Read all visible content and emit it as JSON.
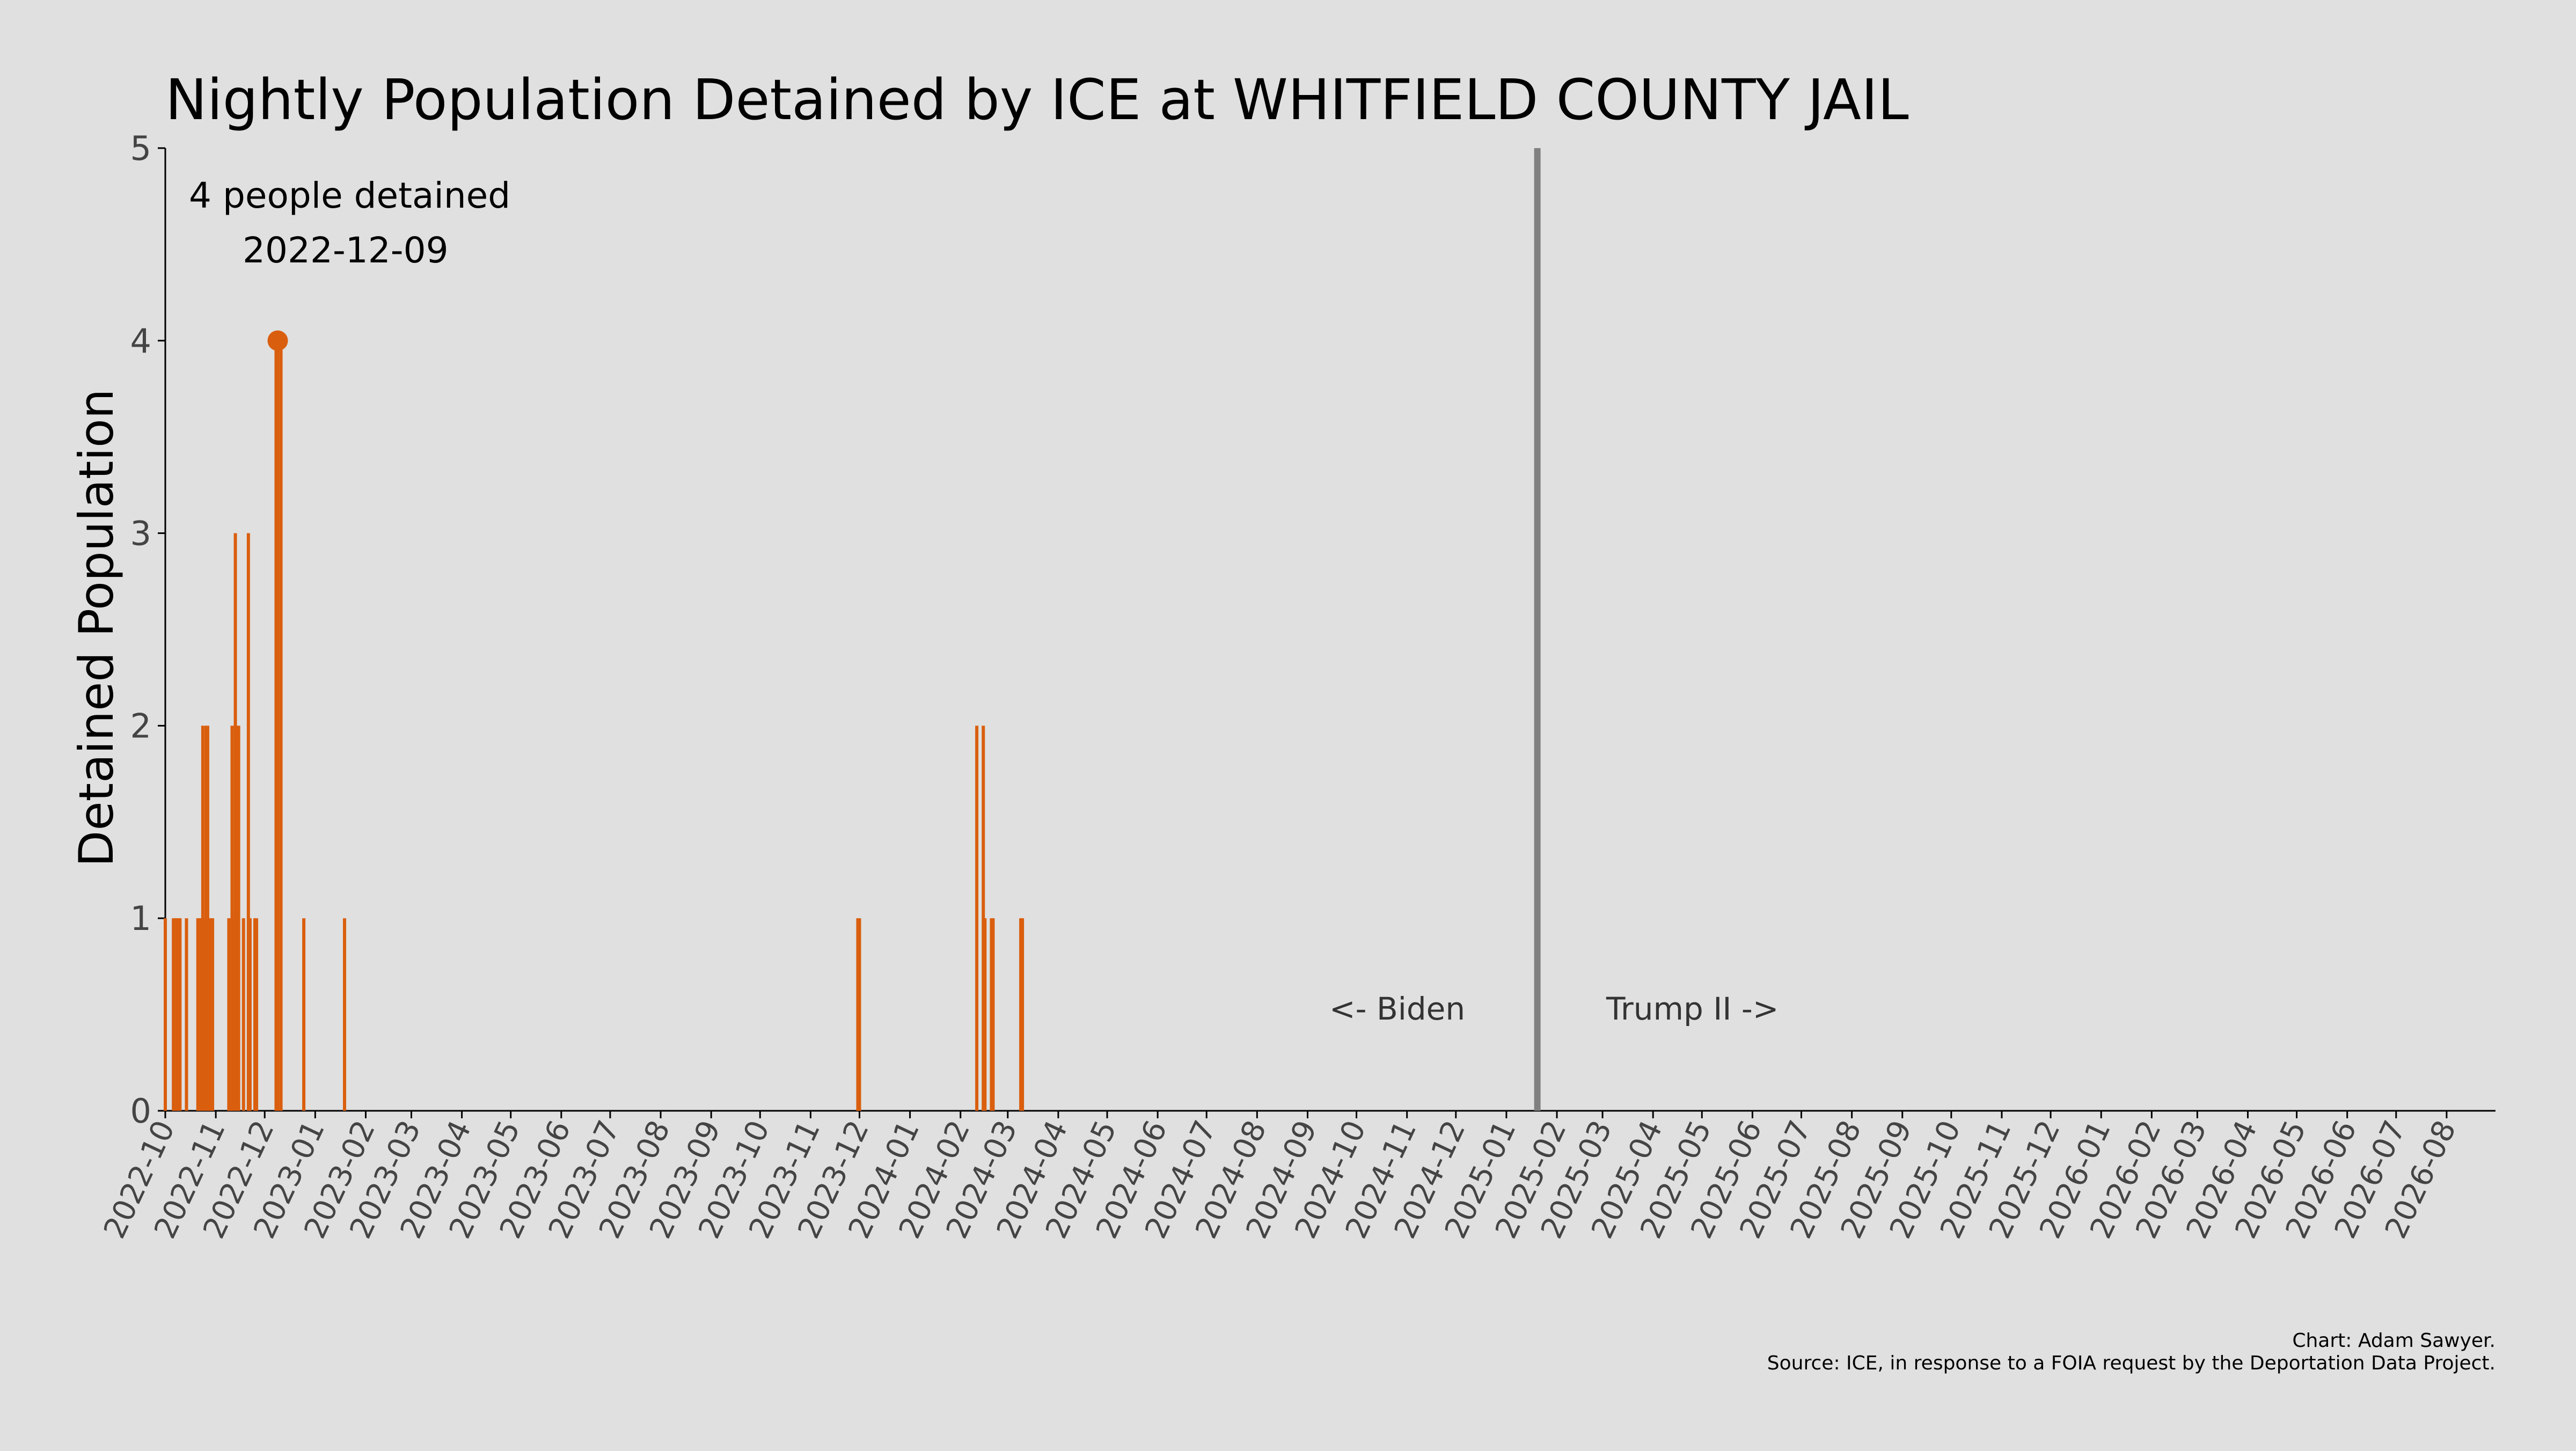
{
  "chart_data": {
    "type": "bar",
    "title": "Nightly Population Detained by ICE at WHITFIELD COUNTY JAIL",
    "ylabel": "Detained Population",
    "xlabel": "",
    "ylim": [
      0,
      5
    ],
    "yticks": [
      0,
      1,
      2,
      3,
      4,
      5
    ],
    "xlim": [
      "2022-10-01",
      "2026-08-31"
    ],
    "xtick_labels": [
      "2022-10",
      "2022-11",
      "2022-12",
      "2023-01",
      "2023-02",
      "2023-03",
      "2023-04",
      "2023-05",
      "2023-06",
      "2023-07",
      "2023-08",
      "2023-09",
      "2023-10",
      "2023-11",
      "2023-12",
      "2024-01",
      "2024-02",
      "2024-03",
      "2024-04",
      "2024-05",
      "2024-06",
      "2024-07",
      "2024-08",
      "2024-09",
      "2024-10",
      "2024-11",
      "2024-12",
      "2025-01",
      "2025-02",
      "2025-03",
      "2025-04",
      "2025-05",
      "2025-06",
      "2025-07",
      "2025-08",
      "2025-09",
      "2025-10",
      "2025-11",
      "2025-12",
      "2026-01",
      "2026-02",
      "2026-03",
      "2026-04",
      "2026-05",
      "2026-06",
      "2026-07",
      "2026-08"
    ],
    "grid": false,
    "bar_color": "#d95f0e",
    "divider_color": "#808080",
    "data": [
      {
        "date": "2022-10-01",
        "value": 1
      },
      {
        "date": "2022-10-06",
        "value": 1
      },
      {
        "date": "2022-10-07",
        "value": 1
      },
      {
        "date": "2022-10-08",
        "value": 1
      },
      {
        "date": "2022-10-09",
        "value": 1
      },
      {
        "date": "2022-10-10",
        "value": 1
      },
      {
        "date": "2022-10-14",
        "value": 1
      },
      {
        "date": "2022-10-21",
        "value": 1
      },
      {
        "date": "2022-10-22",
        "value": 1
      },
      {
        "date": "2022-10-23",
        "value": 1
      },
      {
        "date": "2022-10-24",
        "value": 2
      },
      {
        "date": "2022-10-25",
        "value": 1
      },
      {
        "date": "2022-10-26",
        "value": 2
      },
      {
        "date": "2022-10-27",
        "value": 2
      },
      {
        "date": "2022-10-28",
        "value": 1
      },
      {
        "date": "2022-10-29",
        "value": 1
      },
      {
        "date": "2022-10-30",
        "value": 1
      },
      {
        "date": "2022-11-09",
        "value": 1
      },
      {
        "date": "2022-11-10",
        "value": 1
      },
      {
        "date": "2022-11-11",
        "value": 2
      },
      {
        "date": "2022-11-12",
        "value": 1
      },
      {
        "date": "2022-11-13",
        "value": 3
      },
      {
        "date": "2022-11-14",
        "value": 2
      },
      {
        "date": "2022-11-15",
        "value": 2
      },
      {
        "date": "2022-11-18",
        "value": 1
      },
      {
        "date": "2022-11-21",
        "value": 3
      },
      {
        "date": "2022-11-22",
        "value": 1
      },
      {
        "date": "2022-11-25",
        "value": 1
      },
      {
        "date": "2022-11-26",
        "value": 1
      },
      {
        "date": "2022-12-08",
        "value": 4
      },
      {
        "date": "2022-12-09",
        "value": 4
      },
      {
        "date": "2022-12-11",
        "value": 4
      },
      {
        "date": "2022-12-25",
        "value": 1
      },
      {
        "date": "2023-01-19",
        "value": 1
      },
      {
        "date": "2023-11-30",
        "value": 1
      },
      {
        "date": "2023-12-01",
        "value": 1
      },
      {
        "date": "2024-02-11",
        "value": 2
      },
      {
        "date": "2024-02-15",
        "value": 2
      },
      {
        "date": "2024-02-16",
        "value": 1
      },
      {
        "date": "2024-02-20",
        "value": 1
      },
      {
        "date": "2024-02-21",
        "value": 1
      },
      {
        "date": "2024-03-09",
        "value": 1
      },
      {
        "date": "2024-03-10",
        "value": 1
      }
    ],
    "highlight": {
      "date": "2022-12-09",
      "value": 4
    },
    "annotation": {
      "line1": "4 people detained",
      "line2": "2022-12-09"
    },
    "divider_date": "2025-01-20",
    "era_left_label": "<- Biden",
    "era_right_label": "Trump II ->",
    "credit": "Chart: Adam Sawyer.",
    "source": "Source: ICE, in response to a FOIA request by the Deportation Data Project."
  }
}
